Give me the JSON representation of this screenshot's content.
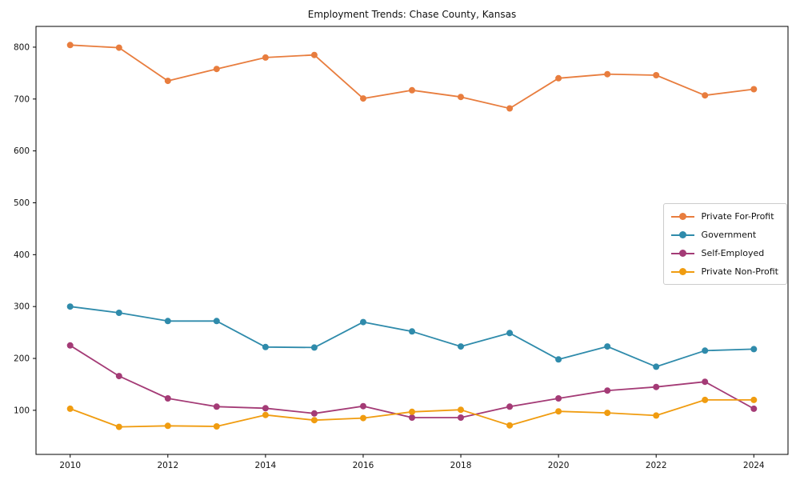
{
  "figure": {
    "title": "Employment Trends: Chase County, Kansas"
  },
  "chart_data": {
    "type": "line",
    "title": "Employment Trends: Chase County, Kansas",
    "xlabel": "",
    "ylabel": "",
    "grid": false,
    "legend_position": "center right",
    "xlim": [
      2009.3,
      2024.7
    ],
    "ylim": [
      15,
      840
    ],
    "xticks": [
      2010,
      2012,
      2014,
      2016,
      2018,
      2020,
      2022,
      2024
    ],
    "yticks": [
      100,
      200,
      300,
      400,
      500,
      600,
      700,
      800
    ],
    "x": [
      2010,
      2011,
      2012,
      2013,
      2014,
      2015,
      2016,
      2017,
      2018,
      2019,
      2020,
      2021,
      2022,
      2023,
      2024
    ],
    "series": [
      {
        "name": "Private For-Profit",
        "color": "#e87d3e",
        "values": [
          804,
          799,
          735,
          758,
          780,
          785,
          701,
          717,
          704,
          682,
          740,
          748,
          746,
          707,
          719
        ]
      },
      {
        "name": "Government",
        "color": "#2f8bab",
        "values": [
          300,
          288,
          272,
          272,
          222,
          221,
          270,
          252,
          223,
          249,
          198,
          223,
          184,
          215,
          218
        ]
      },
      {
        "name": "Self-Employed",
        "color": "#a43b76",
        "values": [
          225,
          166,
          123,
          107,
          104,
          94,
          108,
          86,
          86,
          107,
          123,
          138,
          145,
          155,
          103
        ]
      },
      {
        "name": "Private Non-Profit",
        "color": "#f09c10",
        "values": [
          103,
          68,
          70,
          69,
          91,
          81,
          85,
          97,
          101,
          71,
          98,
          95,
          90,
          120,
          120
        ]
      }
    ]
  }
}
